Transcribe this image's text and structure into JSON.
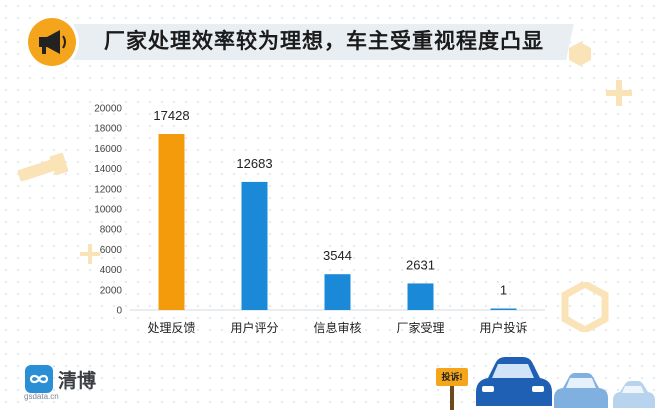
{
  "header": {
    "title": "厂家处理效率较为理想，车主受重视程度凸显",
    "icon": "megaphone-icon"
  },
  "chart_data": {
    "type": "bar",
    "categories": [
      "处理反馈",
      "用户评分",
      "信息审核",
      "厂家受理",
      "用户投诉"
    ],
    "values": [
      17428,
      12683,
      3544,
      2631,
      1
    ],
    "data_labels": [
      "17428",
      "12683",
      "3544",
      "2631",
      "1"
    ],
    "bar_colors": [
      "#f49b0b",
      "#1a8ad8",
      "#1a8ad8",
      "#1a8ad8",
      "#1a8ad8"
    ],
    "ylim": [
      0,
      20000
    ],
    "yticks": [
      "0",
      "2000",
      "4000",
      "6000",
      "8000",
      "10000",
      "12000",
      "14000",
      "16000",
      "18000",
      "20000"
    ],
    "grid": false,
    "legend": "none",
    "title": "",
    "xlabel": "",
    "ylabel": ""
  },
  "logo": {
    "name": "清博",
    "sub": "gsdata.cn",
    "icon": "infinity-icon"
  },
  "sign": {
    "label": "投诉!"
  }
}
